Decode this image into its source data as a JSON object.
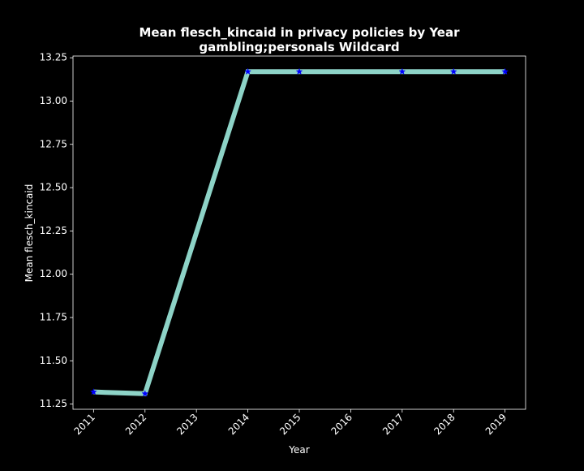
{
  "chart_data": {
    "type": "line",
    "title": "Mean flesch_kincaid in privacy policies by Year",
    "subtitle": "gambling;personals Wildcard",
    "xlabel": "Year",
    "ylabel": "Mean flesch_kincaid",
    "x": [
      2011,
      2012,
      2014,
      2015,
      2017,
      2018,
      2019
    ],
    "x_ticks": [
      "2011",
      "2012",
      "2013",
      "2014",
      "2015",
      "2016",
      "2017",
      "2018",
      "2019"
    ],
    "y_ticks": [
      "11.25",
      "11.50",
      "11.75",
      "12.00",
      "12.25",
      "12.50",
      "12.75",
      "13.00",
      "13.25"
    ],
    "xlim": [
      2010.6,
      2019.4
    ],
    "ylim": [
      11.22,
      13.26
    ],
    "series": [
      {
        "values": [
          11.32,
          11.31,
          13.17,
          13.17,
          13.17,
          13.17,
          13.17
        ],
        "line_color": "#8dd3c7",
        "marker": "star",
        "marker_color": "#0000ff"
      }
    ],
    "grid": false,
    "background": "#000000",
    "foreground": "#ffffff"
  }
}
